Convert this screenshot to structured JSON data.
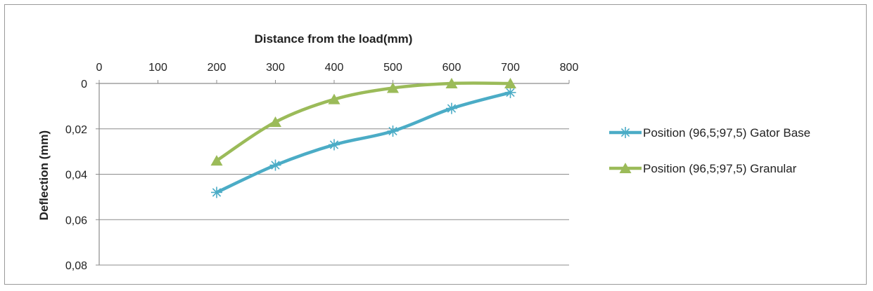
{
  "chart_data": {
    "type": "line",
    "title": "",
    "xlabel": "Distance from the load(mm)",
    "ylabel": "Deflection (mm)",
    "x_axis_position": "top",
    "y_axis_reversed": true,
    "xlim": [
      0,
      800
    ],
    "ylim": [
      0,
      0.08
    ],
    "x_ticks": [
      0,
      100,
      200,
      300,
      400,
      500,
      600,
      700,
      800
    ],
    "x_tick_labels": [
      "0",
      "100",
      "200",
      "300",
      "400",
      "500",
      "600",
      "700",
      "800"
    ],
    "y_ticks": [
      0,
      0.02,
      0.04,
      0.06,
      0.08
    ],
    "y_tick_labels": [
      "0",
      "0,02",
      "0,04",
      "0,06",
      "0,08"
    ],
    "grid": "horizontal",
    "legend_position": "right",
    "series": [
      {
        "name": "Position (96,5;97,5) Gator Base",
        "color": "#4bacc6",
        "marker": "asterisk",
        "x": [
          200,
          300,
          400,
          500,
          600,
          700
        ],
        "y": [
          0.048,
          0.036,
          0.027,
          0.021,
          0.011,
          0.004
        ]
      },
      {
        "name": "Position (96,5;97,5) Granular",
        "color": "#9bbb59",
        "marker": "triangle",
        "x": [
          200,
          300,
          400,
          500,
          600,
          700
        ],
        "y": [
          0.034,
          0.017,
          0.007,
          0.002,
          0.0,
          0.0
        ]
      }
    ]
  }
}
